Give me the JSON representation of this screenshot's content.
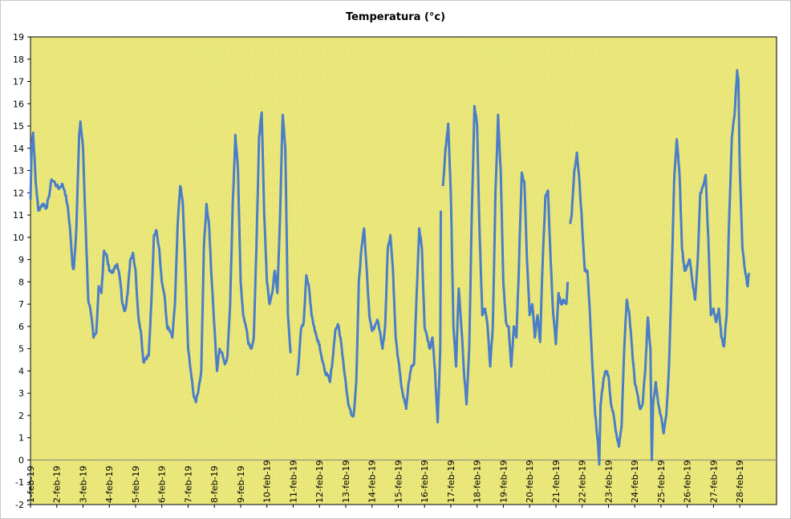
{
  "chart_data": {
    "type": "line",
    "title": "Temperatura (°c)",
    "xlabel": "",
    "ylabel": "",
    "ylim": [
      -2,
      19
    ],
    "yticks": [
      -2,
      -1,
      0,
      1,
      2,
      3,
      4,
      5,
      6,
      7,
      8,
      9,
      10,
      11,
      12,
      13,
      14,
      15,
      16,
      17,
      18,
      19
    ],
    "x_range": [
      "1-feb-19",
      "1-mar-19"
    ],
    "categories": [
      "1-feb-19",
      "2-feb-19",
      "3-feb-19",
      "4-feb-19",
      "5-feb-19",
      "6-feb-19",
      "7-feb-19",
      "8-feb-19",
      "9-feb-19",
      "10-feb-19",
      "11-feb-19",
      "12-feb-19",
      "13-feb-19",
      "14-feb-19",
      "15-feb-19",
      "16-feb-19",
      "17-feb-19",
      "18-feb-19",
      "19-feb-19",
      "20-feb-19",
      "21-feb-19",
      "22-feb-19",
      "23-feb-19",
      "24-feb-19",
      "25-feb-19",
      "26-feb-19",
      "27-feb-19",
      "28-feb-19"
    ],
    "grid": false,
    "legend": "none",
    "colors": {
      "plot_background": "#ece97a",
      "line": "#4a7ec8",
      "zero_line": "#808080"
    },
    "series": [
      {
        "name": "",
        "points": [
          [
            0.0,
            11.7
          ],
          [
            0.05,
            14.3
          ],
          [
            0.1,
            14.7
          ],
          [
            0.2,
            12.5
          ],
          [
            0.3,
            11.2
          ],
          [
            0.4,
            11.4
          ],
          [
            0.5,
            11.5
          ],
          [
            0.6,
            11.3
          ],
          [
            0.7,
            11.8
          ],
          [
            0.8,
            12.6
          ],
          [
            0.9,
            12.5
          ],
          [
            1.0,
            12.3
          ],
          [
            1.1,
            12.2
          ],
          [
            1.2,
            12.4
          ],
          [
            1.3,
            12.1
          ],
          [
            1.4,
            11.5
          ],
          [
            1.5,
            10.5
          ],
          [
            1.6,
            8.7
          ],
          [
            1.65,
            8.6
          ],
          [
            1.75,
            10.5
          ],
          [
            1.85,
            14.5
          ],
          [
            1.9,
            15.2
          ],
          [
            2.0,
            14.0
          ],
          [
            2.1,
            10.5
          ],
          [
            2.2,
            7.2
          ],
          [
            2.3,
            6.6
          ],
          [
            2.4,
            5.5
          ],
          [
            2.5,
            5.7
          ],
          [
            2.6,
            7.8
          ],
          [
            2.7,
            7.5
          ],
          [
            2.8,
            9.4
          ],
          [
            2.9,
            9.2
          ],
          [
            3.0,
            8.5
          ],
          [
            3.1,
            8.4
          ],
          [
            3.2,
            8.6
          ],
          [
            3.3,
            8.8
          ],
          [
            3.4,
            8.2
          ],
          [
            3.5,
            7.0
          ],
          [
            3.6,
            6.7
          ],
          [
            3.7,
            7.5
          ],
          [
            3.8,
            9.0
          ],
          [
            3.9,
            9.3
          ],
          [
            4.0,
            8.5
          ],
          [
            4.1,
            6.5
          ],
          [
            4.2,
            5.8
          ],
          [
            4.3,
            4.4
          ],
          [
            4.4,
            4.6
          ],
          [
            4.5,
            4.7
          ],
          [
            4.6,
            7.0
          ],
          [
            4.7,
            10.1
          ],
          [
            4.8,
            10.3
          ],
          [
            4.9,
            9.5
          ],
          [
            5.0,
            8.0
          ],
          [
            5.1,
            7.4
          ],
          [
            5.2,
            6.0
          ],
          [
            5.3,
            5.8
          ],
          [
            5.4,
            5.5
          ],
          [
            5.5,
            7.0
          ],
          [
            5.6,
            10.5
          ],
          [
            5.7,
            12.3
          ],
          [
            5.8,
            11.5
          ],
          [
            5.9,
            8.5
          ],
          [
            6.0,
            5.0
          ],
          [
            6.1,
            4.0
          ],
          [
            6.2,
            3.0
          ],
          [
            6.3,
            2.6
          ],
          [
            6.4,
            3.2
          ],
          [
            6.5,
            4.0
          ],
          [
            6.6,
            9.5
          ],
          [
            6.7,
            11.5
          ],
          [
            6.8,
            10.5
          ],
          [
            6.9,
            8.0
          ],
          [
            7.0,
            6.0
          ],
          [
            7.1,
            4.0
          ],
          [
            7.2,
            5.0
          ],
          [
            7.3,
            4.8
          ],
          [
            7.4,
            4.3
          ],
          [
            7.5,
            4.7
          ],
          [
            7.6,
            7.0
          ],
          [
            7.7,
            11.5
          ],
          [
            7.8,
            14.6
          ],
          [
            7.9,
            13.0
          ],
          [
            8.0,
            8.0
          ],
          [
            8.1,
            6.5
          ],
          [
            8.2,
            6.0
          ],
          [
            8.3,
            5.2
          ],
          [
            8.4,
            5.0
          ],
          [
            8.5,
            5.5
          ],
          [
            8.6,
            9.5
          ],
          [
            8.7,
            14.5
          ],
          [
            8.8,
            15.6
          ],
          [
            8.9,
            11.0
          ],
          [
            9.0,
            8.0
          ],
          [
            9.1,
            7.0
          ],
          [
            9.2,
            7.5
          ],
          [
            9.3,
            8.5
          ],
          [
            9.4,
            7.5
          ],
          [
            9.5,
            11.0
          ],
          [
            9.6,
            15.5
          ],
          [
            9.7,
            14.0
          ],
          [
            9.8,
            6.5
          ],
          [
            9.9,
            4.8
          ],
          [
            9.91,
            null
          ],
          [
            10.15,
            3.8
          ],
          [
            10.2,
            4.2
          ],
          [
            10.3,
            5.9
          ],
          [
            10.4,
            6.2
          ],
          [
            10.5,
            8.3
          ],
          [
            10.6,
            7.8
          ],
          [
            10.7,
            6.5
          ],
          [
            10.8,
            6.0
          ],
          [
            10.9,
            5.5
          ],
          [
            11.0,
            5.2
          ],
          [
            11.1,
            4.5
          ],
          [
            11.2,
            4.0
          ],
          [
            11.3,
            3.8
          ],
          [
            11.4,
            3.5
          ],
          [
            11.5,
            4.5
          ],
          [
            11.6,
            5.8
          ],
          [
            11.7,
            6.1
          ],
          [
            11.8,
            5.5
          ],
          [
            11.9,
            4.5
          ],
          [
            12.0,
            3.5
          ],
          [
            12.1,
            2.5
          ],
          [
            12.2,
            2.1
          ],
          [
            12.3,
            2.0
          ],
          [
            12.4,
            3.5
          ],
          [
            12.5,
            8.0
          ],
          [
            12.6,
            9.5
          ],
          [
            12.7,
            10.4
          ],
          [
            12.8,
            8.5
          ],
          [
            12.9,
            6.5
          ],
          [
            13.0,
            5.8
          ],
          [
            13.1,
            6.0
          ],
          [
            13.2,
            6.3
          ],
          [
            13.3,
            5.8
          ],
          [
            13.4,
            5.0
          ],
          [
            13.5,
            6.0
          ],
          [
            13.6,
            9.5
          ],
          [
            13.7,
            10.1
          ],
          [
            13.8,
            8.5
          ],
          [
            13.9,
            5.5
          ],
          [
            14.0,
            4.5
          ],
          [
            14.1,
            3.5
          ],
          [
            14.2,
            2.8
          ],
          [
            14.3,
            2.3
          ],
          [
            14.4,
            3.5
          ],
          [
            14.5,
            4.2
          ],
          [
            14.6,
            4.3
          ],
          [
            14.7,
            7.5
          ],
          [
            14.8,
            10.4
          ],
          [
            14.9,
            9.5
          ],
          [
            15.0,
            6.0
          ],
          [
            15.1,
            5.5
          ],
          [
            15.2,
            5.0
          ],
          [
            15.3,
            5.5
          ],
          [
            15.4,
            4.0
          ],
          [
            15.5,
            1.7
          ],
          [
            15.6,
            5.0
          ],
          [
            15.62,
            11.2
          ],
          [
            15.63,
            null
          ],
          [
            15.7,
            12.3
          ],
          [
            15.8,
            14.0
          ],
          [
            15.9,
            15.1
          ],
          [
            16.0,
            12.0
          ],
          [
            16.1,
            6.0
          ],
          [
            16.2,
            4.2
          ],
          [
            16.3,
            7.7
          ],
          [
            16.4,
            6.0
          ],
          [
            16.5,
            4.0
          ],
          [
            16.6,
            2.5
          ],
          [
            16.7,
            5.0
          ],
          [
            16.8,
            11.0
          ],
          [
            16.9,
            15.9
          ],
          [
            17.0,
            15.0
          ],
          [
            17.1,
            10.0
          ],
          [
            17.2,
            6.5
          ],
          [
            17.3,
            6.8
          ],
          [
            17.4,
            6.0
          ],
          [
            17.5,
            4.2
          ],
          [
            17.6,
            6.0
          ],
          [
            17.7,
            12.0
          ],
          [
            17.8,
            15.5
          ],
          [
            17.9,
            13.0
          ],
          [
            18.0,
            8.0
          ],
          [
            18.1,
            6.2
          ],
          [
            18.2,
            6.0
          ],
          [
            18.3,
            4.2
          ],
          [
            18.4,
            6.0
          ],
          [
            18.5,
            5.5
          ],
          [
            18.6,
            9.0
          ],
          [
            18.7,
            12.9
          ],
          [
            18.8,
            12.5
          ],
          [
            18.9,
            9.0
          ],
          [
            19.0,
            6.5
          ],
          [
            19.1,
            7.0
          ],
          [
            19.2,
            5.5
          ],
          [
            19.3,
            6.5
          ],
          [
            19.4,
            5.3
          ],
          [
            19.5,
            9.0
          ],
          [
            19.6,
            11.8
          ],
          [
            19.7,
            12.1
          ],
          [
            19.8,
            9.0
          ],
          [
            19.9,
            6.5
          ],
          [
            20.0,
            5.2
          ],
          [
            20.1,
            7.5
          ],
          [
            20.2,
            7.0
          ],
          [
            20.3,
            7.2
          ],
          [
            20.4,
            7.0
          ],
          [
            20.45,
            8.0
          ],
          [
            20.46,
            null
          ],
          [
            20.55,
            10.6
          ],
          [
            20.6,
            11.0
          ],
          [
            20.7,
            13.0
          ],
          [
            20.8,
            13.8
          ],
          [
            20.9,
            12.5
          ],
          [
            21.0,
            10.5
          ],
          [
            21.1,
            8.5
          ],
          [
            21.2,
            8.5
          ],
          [
            21.3,
            6.5
          ],
          [
            21.4,
            4.0
          ],
          [
            21.5,
            2.0
          ],
          [
            21.6,
            0.8
          ],
          [
            21.65,
            -0.2
          ],
          [
            21.7,
            2.5
          ],
          [
            21.8,
            3.5
          ],
          [
            21.9,
            4.0
          ],
          [
            22.0,
            3.8
          ],
          [
            22.1,
            2.5
          ],
          [
            22.2,
            2.0
          ],
          [
            22.3,
            1.2
          ],
          [
            22.4,
            0.6
          ],
          [
            22.5,
            1.5
          ],
          [
            22.6,
            5.0
          ],
          [
            22.7,
            7.2
          ],
          [
            22.8,
            6.5
          ],
          [
            22.9,
            5.0
          ],
          [
            23.0,
            3.5
          ],
          [
            23.1,
            3.0
          ],
          [
            23.2,
            2.3
          ],
          [
            23.3,
            2.5
          ],
          [
            23.4,
            4.0
          ],
          [
            23.5,
            6.4
          ],
          [
            23.6,
            5.0
          ],
          [
            23.65,
            0.0
          ],
          [
            23.7,
            2.5
          ],
          [
            23.8,
            3.5
          ],
          [
            23.9,
            2.5
          ],
          [
            24.0,
            2.0
          ],
          [
            24.1,
            1.2
          ],
          [
            24.2,
            2.0
          ],
          [
            24.3,
            4.0
          ],
          [
            24.4,
            8.0
          ],
          [
            24.5,
            12.5
          ],
          [
            24.6,
            14.4
          ],
          [
            24.7,
            13.0
          ],
          [
            24.8,
            9.5
          ],
          [
            24.9,
            8.5
          ],
          [
            25.0,
            8.7
          ],
          [
            25.1,
            9.0
          ],
          [
            25.2,
            8.0
          ],
          [
            25.3,
            7.2
          ],
          [
            25.4,
            9.0
          ],
          [
            25.5,
            12.0
          ],
          [
            25.6,
            12.3
          ],
          [
            25.7,
            12.8
          ],
          [
            25.8,
            10.0
          ],
          [
            25.9,
            6.5
          ],
          [
            26.0,
            6.8
          ],
          [
            26.1,
            6.2
          ],
          [
            26.2,
            6.8
          ],
          [
            26.3,
            5.5
          ],
          [
            26.4,
            5.1
          ],
          [
            26.5,
            6.5
          ],
          [
            26.6,
            11.0
          ],
          [
            26.7,
            14.5
          ],
          [
            26.8,
            15.5
          ],
          [
            26.9,
            17.5
          ],
          [
            26.95,
            17.0
          ],
          [
            27.0,
            13.0
          ],
          [
            27.1,
            9.5
          ],
          [
            27.2,
            8.5
          ],
          [
            27.3,
            7.8
          ],
          [
            27.35,
            8.4
          ]
        ]
      }
    ]
  }
}
